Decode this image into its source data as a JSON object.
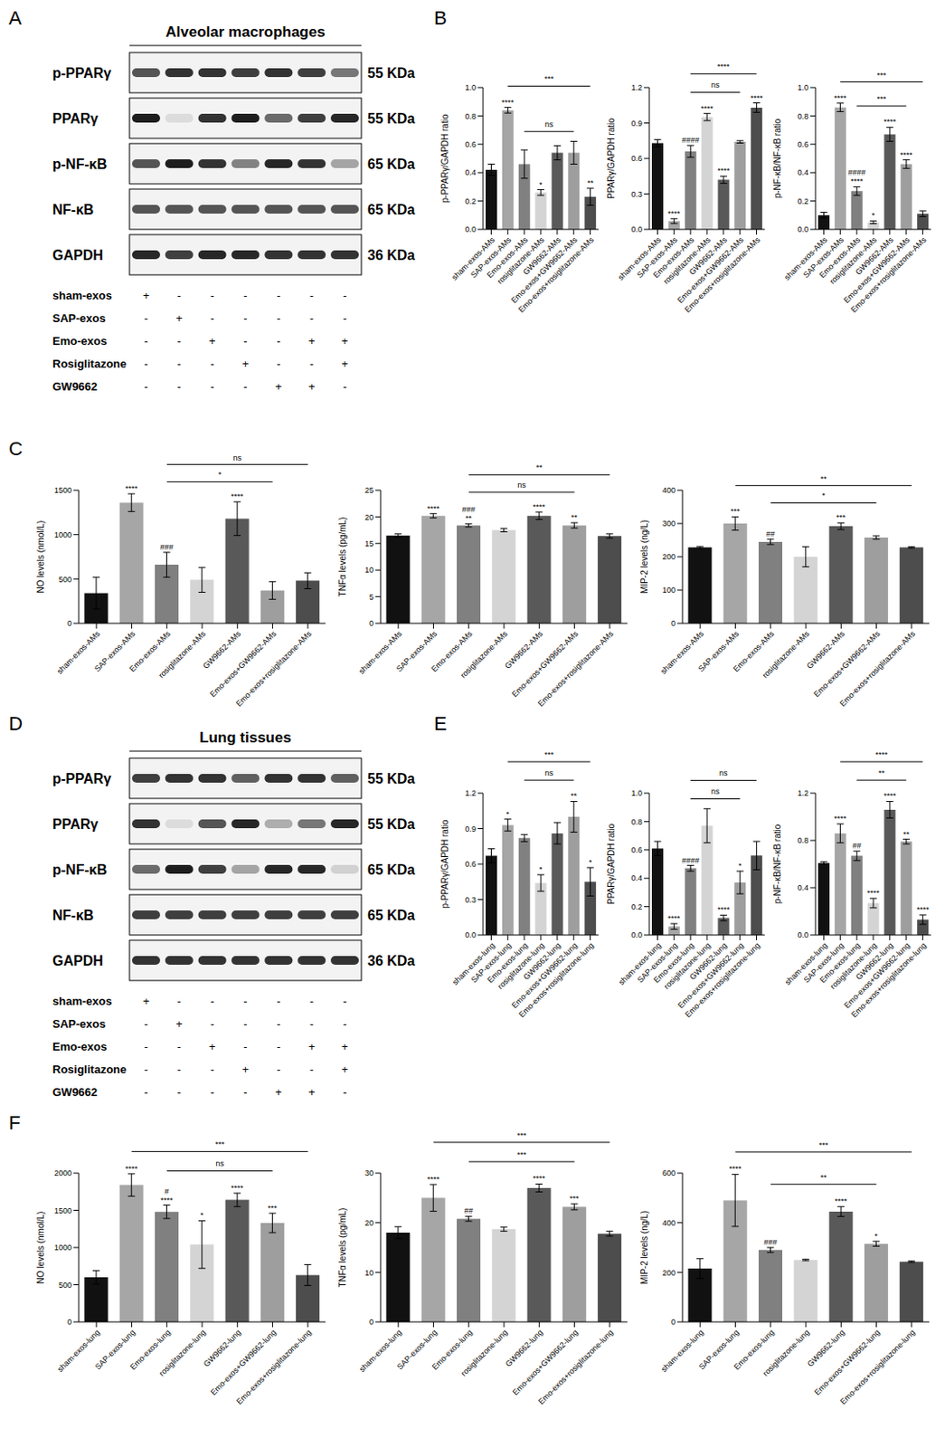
{
  "panel_labels": [
    "A",
    "B",
    "C",
    "D",
    "E",
    "F"
  ],
  "blots": [
    {
      "title": "Alveolar macrophages",
      "rows": [
        {
          "label": "p-PPARγ",
          "kda": "55 KDa",
          "band_intensity": [
            0.7,
            0.85,
            0.85,
            0.8,
            0.85,
            0.8,
            0.55
          ]
        },
        {
          "label": "PPARγ",
          "kda": "55 KDa",
          "band_intensity": [
            0.95,
            0.1,
            0.85,
            0.95,
            0.6,
            0.8,
            0.9
          ]
        },
        {
          "label": "p-NF-κB",
          "kda": "65 KDa",
          "band_intensity": [
            0.7,
            0.95,
            0.85,
            0.5,
            0.9,
            0.85,
            0.35
          ]
        },
        {
          "label": "NF-κB",
          "kda": "65 KDa",
          "band_intensity": [
            0.7,
            0.7,
            0.7,
            0.7,
            0.7,
            0.7,
            0.7
          ]
        },
        {
          "label": "GAPDH",
          "kda": "36 KDa",
          "band_intensity": [
            0.9,
            0.8,
            0.9,
            0.9,
            0.85,
            0.85,
            0.85
          ]
        }
      ],
      "treatments": [
        {
          "label": "sham-exos",
          "signs": [
            "+",
            "-",
            "-",
            "-",
            "-",
            "-",
            "-"
          ]
        },
        {
          "label": "SAP-exos",
          "signs": [
            "-",
            "+",
            "-",
            "-",
            "-",
            "-",
            "-"
          ]
        },
        {
          "label": "Emo-exos",
          "signs": [
            "-",
            "-",
            "+",
            "-",
            "-",
            "+",
            "+"
          ]
        },
        {
          "label": "Rosiglitazone",
          "signs": [
            "-",
            "-",
            "-",
            "+",
            "-",
            "-",
            "+"
          ]
        },
        {
          "label": "GW9662",
          "signs": [
            "-",
            "-",
            "-",
            "-",
            "+",
            "+",
            "-"
          ]
        }
      ]
    },
    {
      "title": "Lung tissues",
      "rows": [
        {
          "label": "p-PPARγ",
          "kda": "55 KDa",
          "band_intensity": [
            0.8,
            0.85,
            0.85,
            0.65,
            0.85,
            0.85,
            0.65
          ]
        },
        {
          "label": "PPARγ",
          "kda": "55 KDa",
          "band_intensity": [
            0.85,
            0.1,
            0.7,
            0.9,
            0.3,
            0.55,
            0.9
          ]
        },
        {
          "label": "p-NF-κB",
          "kda": "65 KDa",
          "band_intensity": [
            0.6,
            0.95,
            0.8,
            0.35,
            0.9,
            0.9,
            0.15
          ]
        },
        {
          "label": "NF-κB",
          "kda": "65 KDa",
          "band_intensity": [
            0.8,
            0.8,
            0.8,
            0.8,
            0.8,
            0.8,
            0.8
          ]
        },
        {
          "label": "GAPDH",
          "kda": "36 KDa",
          "band_intensity": [
            0.85,
            0.85,
            0.85,
            0.85,
            0.85,
            0.85,
            0.85
          ]
        }
      ],
      "treatments": [
        {
          "label": "sham-exos",
          "signs": [
            "+",
            "-",
            "-",
            "-",
            "-",
            "-",
            "-"
          ]
        },
        {
          "label": "SAP-exos",
          "signs": [
            "-",
            "+",
            "-",
            "-",
            "-",
            "-",
            "-"
          ]
        },
        {
          "label": "Emo-exos",
          "signs": [
            "-",
            "-",
            "+",
            "-",
            "-",
            "+",
            "+"
          ]
        },
        {
          "label": "Rosiglitazone",
          "signs": [
            "-",
            "-",
            "-",
            "+",
            "-",
            "-",
            "+"
          ]
        },
        {
          "label": "GW9662",
          "signs": [
            "-",
            "-",
            "-",
            "-",
            "+",
            "+",
            "-"
          ]
        }
      ]
    }
  ],
  "chart_data": [
    {
      "type": "bar",
      "y_label": "p-PPARγ/GAPDH ratio",
      "categories": [
        "sham-exos-AMs",
        "SAP-exos-AMs",
        "Emo-exos-AMs",
        "rosiglitazone-AMs",
        "GW9662-AMs",
        "Emo-exos+GW9662-AMs",
        "Emo-exos+rosiglitazone-AMs"
      ],
      "values": [
        0.42,
        0.84,
        0.46,
        0.26,
        0.54,
        0.54,
        0.23
      ],
      "errors": [
        0.04,
        0.02,
        0.1,
        0.02,
        0.05,
        0.08,
        0.06
      ],
      "colors": [
        "#111111",
        "#a6a6a6",
        "#808080",
        "#d4d4d4",
        "#595959",
        "#9e9e9e",
        "#4d4d4d"
      ],
      "ylim": [
        0,
        1
      ],
      "yticks": [
        {
          "value": 0,
          "label": "0.0"
        },
        0.2,
        0.4,
        0.6,
        0.8,
        {
          "value": 1,
          "label": "1.0"
        }
      ],
      "significance": [
        null,
        "****",
        null,
        "*",
        null,
        null,
        "**"
      ],
      "comparisons": [
        {
          "from": 2,
          "to": 5,
          "label": "ns"
        },
        {
          "from": 1,
          "to": 6,
          "label": "***"
        }
      ]
    },
    {
      "type": "bar",
      "y_label": "PPARγ/GAPDH ratio",
      "categories": [
        "sham-exos-AMs",
        "SAP-exos-AMs",
        "Emo-exos-AMs",
        "rosiglitazone-AMs",
        "GW9662-AMs",
        "Emo-exos+GW9662-AMs",
        "Emo-exos+rosiglitazone-AMs"
      ],
      "values": [
        0.73,
        0.07,
        0.66,
        0.95,
        0.42,
        0.74,
        1.03
      ],
      "errors": [
        0.03,
        0.02,
        0.05,
        0.03,
        0.03,
        0.01,
        0.04
      ],
      "colors": [
        "#111111",
        "#a6a6a6",
        "#808080",
        "#d4d4d4",
        "#595959",
        "#9e9e9e",
        "#4d4d4d"
      ],
      "ylim": [
        0,
        1.2
      ],
      "yticks": [
        {
          "value": 0,
          "label": "0.0"
        },
        0.3,
        0.6,
        0.9,
        1.2
      ],
      "significance": [
        null,
        "****",
        "####",
        "****",
        "****",
        null,
        "****"
      ],
      "comparisons": [
        {
          "from": 2,
          "to": 5,
          "label": "ns"
        },
        {
          "from": 2,
          "to": 6,
          "label": "****"
        }
      ]
    },
    {
      "type": "bar",
      "y_label": "p-NF-κB/NF-κB ratio",
      "categories": [
        "sham-exos-AMs",
        "SAP-exos-AMs",
        "Emo-exos-AMs",
        "rosiglitazone-AMs",
        "GW9662-AMs",
        "Emo-exos+GW9662-AMs",
        "Emo-exos+rosiglitazone-AMs"
      ],
      "values": [
        0.1,
        0.86,
        0.27,
        0.05,
        0.67,
        0.46,
        0.11
      ],
      "errors": [
        0.02,
        0.03,
        0.03,
        0.01,
        0.05,
        0.03,
        0.02
      ],
      "colors": [
        "#111111",
        "#a6a6a6",
        "#808080",
        "#d4d4d4",
        "#595959",
        "#9e9e9e",
        "#4d4d4d"
      ],
      "ylim": [
        0,
        1
      ],
      "yticks": [
        {
          "value": 0,
          "label": "0.0"
        },
        0.2,
        0.4,
        0.6,
        0.8,
        {
          "value": 1,
          "label": "1.0"
        }
      ],
      "significance": [
        null,
        "****",
        [
          "####",
          "****"
        ],
        "*",
        "****",
        "****",
        null
      ],
      "comparisons": [
        {
          "from": 2,
          "to": 5,
          "label": "***"
        },
        {
          "from": 1,
          "to": 6,
          "label": "***"
        }
      ]
    },
    {
      "type": "bar",
      "y_label": "NO levels (nmol/L)",
      "categories": [
        "sham-exos-AMs",
        "SAP-exos-AMs",
        "Emo-exos-AMs",
        "rosiglitazone-AMs",
        "GW9662-AMs",
        "Emo-exos+GW9662-AMs",
        "Emo-exos+rosiglitazone-AMs"
      ],
      "values": [
        340,
        1360,
        660,
        490,
        1180,
        370,
        480
      ],
      "errors": [
        180,
        100,
        140,
        140,
        190,
        100,
        90
      ],
      "colors": [
        "#111111",
        "#a6a6a6",
        "#808080",
        "#d4d4d4",
        "#595959",
        "#9e9e9e",
        "#4d4d4d"
      ],
      "ylim": [
        0,
        1500
      ],
      "yticks": [
        0,
        500,
        1000,
        1500
      ],
      "significance": [
        null,
        "****",
        "###",
        null,
        "****",
        null,
        null
      ],
      "comparisons": [
        {
          "from": 2,
          "to": 5,
          "label": "*"
        },
        {
          "from": 2,
          "to": 6,
          "label": "ns"
        }
      ]
    },
    {
      "type": "bar",
      "y_label": "TNFα levels (pg/mL)",
      "categories": [
        "sham-exos-AMs",
        "SAP-exos-AMs",
        "Emo-exos-AMs",
        "rosiglitazone-AMs",
        "GW9662-AMs",
        "Emo-exos+GW9662-AMs",
        "Emo-exos+rosiglitazone-AMs"
      ],
      "values": [
        16.5,
        20.2,
        18.4,
        17.5,
        20.2,
        18.4,
        16.4
      ],
      "errors": [
        0.3,
        0.4,
        0.3,
        0.3,
        0.7,
        0.5,
        0.4
      ],
      "colors": [
        "#111111",
        "#a6a6a6",
        "#808080",
        "#d4d4d4",
        "#595959",
        "#9e9e9e",
        "#4d4d4d"
      ],
      "ylim": [
        0,
        25
      ],
      "yticks": [
        0,
        5,
        10,
        15,
        20,
        25
      ],
      "significance": [
        null,
        "****",
        [
          "###",
          "**"
        ],
        null,
        "****",
        "**",
        null
      ],
      "comparisons": [
        {
          "from": 2,
          "to": 5,
          "label": "ns"
        },
        {
          "from": 2,
          "to": 6,
          "label": "**"
        }
      ]
    },
    {
      "type": "bar",
      "y_label": "MIP-2 levels (ng/L)",
      "categories": [
        "sham-exos-AMs",
        "SAP-exos-AMs",
        "Emo-exos-AMs",
        "rosiglitazone-AMs",
        "GW9662-AMs",
        "Emo-exos+GW9662-AMs",
        "Emo-exos+rosiglitazone-AMs"
      ],
      "values": [
        228,
        300,
        245,
        200,
        292,
        258,
        228
      ],
      "errors": [
        3,
        20,
        8,
        30,
        10,
        5,
        2
      ],
      "colors": [
        "#111111",
        "#a6a6a6",
        "#808080",
        "#d4d4d4",
        "#595959",
        "#9e9e9e",
        "#4d4d4d"
      ],
      "ylim": [
        0,
        400
      ],
      "yticks": [
        0,
        100,
        200,
        300,
        400
      ],
      "significance": [
        null,
        "***",
        "##",
        null,
        "***",
        null,
        null
      ],
      "comparisons": [
        {
          "from": 2,
          "to": 5,
          "label": "*"
        },
        {
          "from": 1,
          "to": 6,
          "label": "**"
        }
      ]
    },
    {
      "type": "bar",
      "y_label": "p-PPARγ/GAPDH ratio",
      "categories": [
        "sham-exos-lung",
        "SAP-exos-lung",
        "Emo-exos-lung",
        "rosiglitazone-lung",
        "GW9662-lung",
        "Emo-exos+GW9662-lung",
        "Emo-exos+rosiglitazone-lung"
      ],
      "values": [
        0.67,
        0.93,
        0.82,
        0.44,
        0.86,
        1.0,
        0.45
      ],
      "errors": [
        0.06,
        0.05,
        0.03,
        0.07,
        0.09,
        0.13,
        0.12
      ],
      "colors": [
        "#111111",
        "#a6a6a6",
        "#808080",
        "#d4d4d4",
        "#595959",
        "#9e9e9e",
        "#4d4d4d"
      ],
      "ylim": [
        0,
        1.2
      ],
      "yticks": [
        {
          "value": 0,
          "label": "0.0"
        },
        0.3,
        0.6,
        0.9,
        1.2
      ],
      "significance": [
        null,
        "*",
        null,
        "*",
        null,
        "**",
        "*"
      ],
      "comparisons": [
        {
          "from": 2,
          "to": 5,
          "label": "ns"
        },
        {
          "from": 1,
          "to": 6,
          "label": "***"
        }
      ]
    },
    {
      "type": "bar",
      "y_label": "PPARγ/GAPDH ratio",
      "categories": [
        "sham-exos-lung",
        "SAP-exos-lung",
        "Emo-exos-lung",
        "rosiglitazone-lung",
        "GW9662-lung",
        "Emo-exos+GW9662-lung",
        "Emo-exos+rosiglitazone-lung"
      ],
      "values": [
        0.61,
        0.06,
        0.47,
        0.77,
        0.12,
        0.37,
        0.56
      ],
      "errors": [
        0.05,
        0.02,
        0.02,
        0.12,
        0.02,
        0.08,
        0.1
      ],
      "colors": [
        "#111111",
        "#a6a6a6",
        "#808080",
        "#d4d4d4",
        "#595959",
        "#9e9e9e",
        "#4d4d4d"
      ],
      "ylim": [
        0,
        1
      ],
      "yticks": [
        {
          "value": 0,
          "label": "0.0"
        },
        0.2,
        0.4,
        0.6,
        0.8,
        {
          "value": 1,
          "label": "1.0"
        }
      ],
      "significance": [
        null,
        "****",
        "####",
        null,
        "****",
        "*",
        null
      ],
      "comparisons": [
        {
          "from": 2,
          "to": 5,
          "label": "ns"
        },
        {
          "from": 2,
          "to": 6,
          "label": "ns"
        }
      ]
    },
    {
      "type": "bar",
      "y_label": "p-NF-κB/NF-κB ratio",
      "categories": [
        "sham-exos-lung",
        "SAP-exos-lung",
        "Emo-exos-lung",
        "rosiglitazone-lung",
        "GW9662-lung",
        "Emo-exos+GW9662-lung",
        "Emo-exos+rosiglitazone-lung"
      ],
      "values": [
        0.61,
        0.86,
        0.67,
        0.27,
        1.06,
        0.79,
        0.13
      ],
      "errors": [
        0.01,
        0.08,
        0.04,
        0.04,
        0.07,
        0.02,
        0.04
      ],
      "colors": [
        "#111111",
        "#a6a6a6",
        "#808080",
        "#d4d4d4",
        "#595959",
        "#9e9e9e",
        "#4d4d4d"
      ],
      "ylim": [
        0,
        1.2
      ],
      "yticks": [
        {
          "value": 0,
          "label": "0.0"
        },
        0.4,
        0.8,
        1.2
      ],
      "significance": [
        null,
        "****",
        "##",
        "****",
        "****",
        "**",
        "****"
      ],
      "comparisons": [
        {
          "from": 2,
          "to": 5,
          "label": "**"
        },
        {
          "from": 1,
          "to": 6,
          "label": "****"
        }
      ]
    },
    {
      "type": "bar",
      "y_label": "NO levels (nmol/L)",
      "categories": [
        "sham-exos-lung",
        "SAP-exos-lung",
        "Emo-exos-lung",
        "rosiglitazone-lung",
        "GW9662-lung",
        "Emo-exos+GW9662-lung",
        "Emo-exos+rosiglitazone-lung"
      ],
      "values": [
        600,
        1840,
        1480,
        1040,
        1640,
        1330,
        630
      ],
      "errors": [
        90,
        150,
        90,
        320,
        90,
        130,
        140
      ],
      "colors": [
        "#111111",
        "#a6a6a6",
        "#808080",
        "#d4d4d4",
        "#595959",
        "#9e9e9e",
        "#4d4d4d"
      ],
      "ylim": [
        0,
        2000
      ],
      "yticks": [
        0,
        500,
        1000,
        1500,
        2000
      ],
      "significance": [
        null,
        "****",
        [
          "#",
          "****"
        ],
        "*",
        "****",
        "***",
        null
      ],
      "comparisons": [
        {
          "from": 2,
          "to": 5,
          "label": "ns"
        },
        {
          "from": 1,
          "to": 6,
          "label": "***"
        }
      ]
    },
    {
      "type": "bar",
      "y_label": "TNFα levels (pg/mL)",
      "categories": [
        "sham-exos-lung",
        "SAP-exos-lung",
        "Emo-exos-lung",
        "rosiglitazone-lung",
        "GW9662-lung",
        "Emo-exos+GW9662-lung",
        "Emo-exos+rosiglitazone-lung"
      ],
      "values": [
        18,
        25,
        20.8,
        18.7,
        27,
        23.2,
        17.8
      ],
      "errors": [
        1.2,
        2.7,
        0.5,
        0.4,
        0.8,
        0.6,
        0.5
      ],
      "colors": [
        "#111111",
        "#a6a6a6",
        "#808080",
        "#d4d4d4",
        "#595959",
        "#9e9e9e",
        "#4d4d4d"
      ],
      "ylim": [
        0,
        30
      ],
      "yticks": [
        0,
        10,
        20,
        30
      ],
      "significance": [
        null,
        "****",
        "##",
        null,
        "****",
        "***",
        null
      ],
      "comparisons": [
        {
          "from": 2,
          "to": 5,
          "label": "***"
        },
        {
          "from": 1,
          "to": 6,
          "label": "***"
        }
      ]
    },
    {
      "type": "bar",
      "y_label": "MIP-2 levels (ng/L)",
      "categories": [
        "sham-exos-lung",
        "SAP-exos-lung",
        "Emo-exos-lung",
        "rosiglitazone-lung",
        "GW9662-lung",
        "Emo-exos+GW9662-lung",
        "Emo-exos+rosiglitazone-lung"
      ],
      "values": [
        215,
        490,
        290,
        250,
        445,
        315,
        243
      ],
      "errors": [
        40,
        105,
        10,
        3,
        20,
        10,
        3
      ],
      "colors": [
        "#111111",
        "#a6a6a6",
        "#808080",
        "#d4d4d4",
        "#595959",
        "#9e9e9e",
        "#4d4d4d"
      ],
      "ylim": [
        0,
        600
      ],
      "yticks": [
        0,
        200,
        400,
        600
      ],
      "significance": [
        null,
        "****",
        "###",
        null,
        "****",
        "*",
        null
      ],
      "comparisons": [
        {
          "from": 2,
          "to": 5,
          "label": "**"
        },
        {
          "from": 1,
          "to": 6,
          "label": "***"
        }
      ]
    }
  ]
}
